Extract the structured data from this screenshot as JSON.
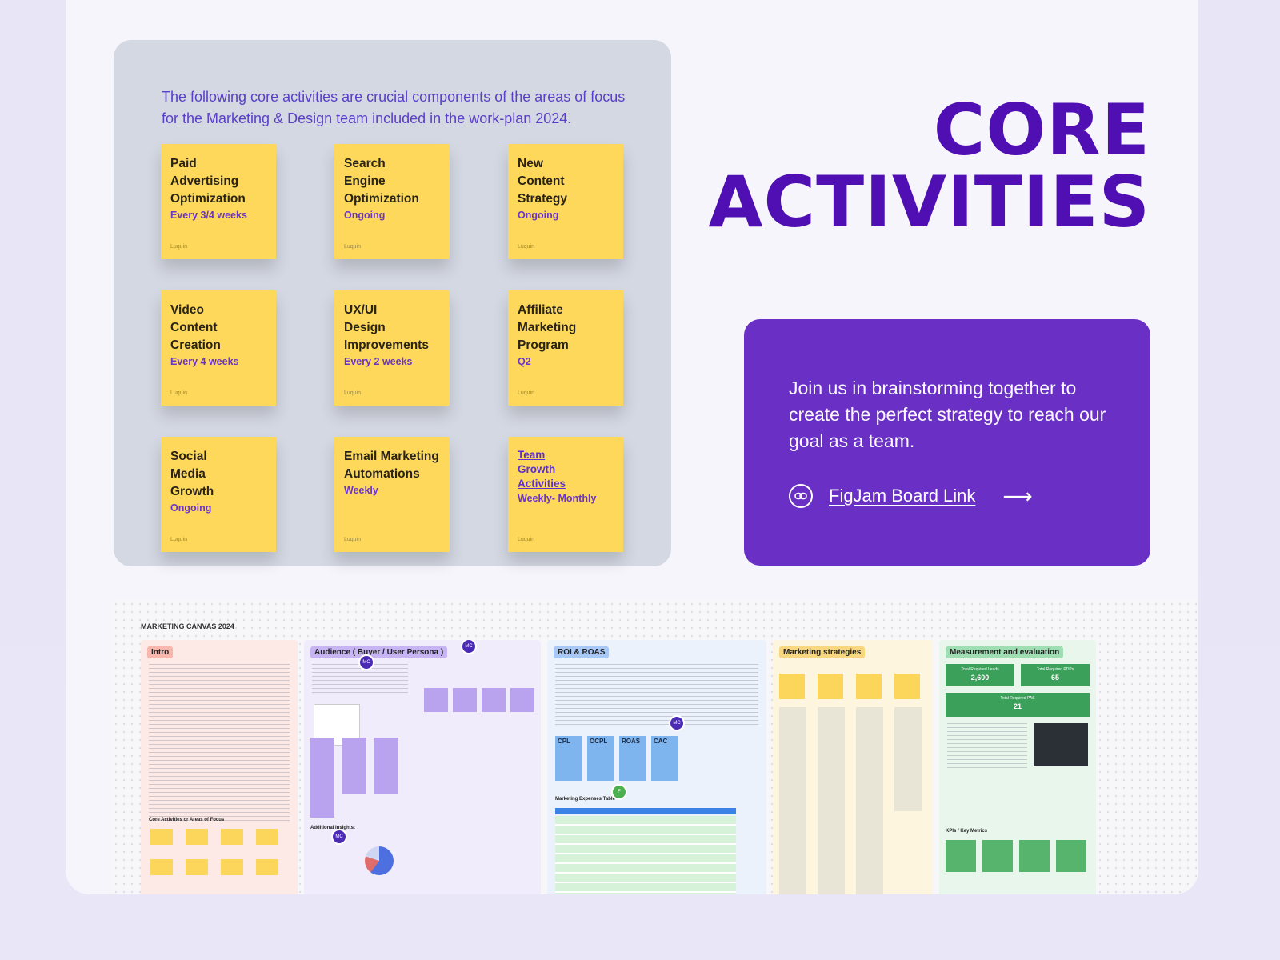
{
  "board": {
    "intro": "The following core activities are crucial components of the areas of focus for the Marketing & Design team included in the work-plan 2024.",
    "author": "Luquin",
    "notes": [
      {
        "title": "Paid\nAdvertising\nOptimization",
        "cadence": "Every 3/4 weeks"
      },
      {
        "title": "Search\nEngine\nOptimization",
        "cadence": "Ongoing"
      },
      {
        "title": "New\nContent\nStrategy",
        "cadence": "Ongoing"
      },
      {
        "title": "Video\nContent\nCreation",
        "cadence": "Every 4 weeks"
      },
      {
        "title": "UX/UI\nDesign\nImprovements",
        "cadence": "Every 2 weeks"
      },
      {
        "title": "Affiliate\nMarketing\nProgram",
        "cadence": "Q2"
      },
      {
        "title": "Social\nMedia\nGrowth",
        "cadence": "Ongoing"
      },
      {
        "title": "Email Marketing\nAutomations",
        "cadence": "Weekly"
      },
      {
        "title": "Team\nGrowth\nActivities",
        "cadence": "Weekly- Monthly"
      }
    ]
  },
  "hero": {
    "line1": "CORE",
    "line2": "ACTIVITIES"
  },
  "cta": {
    "text": "Join us in brainstorming together to create the perfect strategy to reach our goal as a team.",
    "link_label": "FigJam Board Link",
    "arrow": "⟶",
    "link_icon": "link-icon"
  },
  "canvas": {
    "title": "MARKETING CANVAS 2024",
    "sections": {
      "intro": "Intro",
      "audience": "Audience ( Buyer / User Persona )",
      "roi": "ROI & ROAS",
      "strategies": "Marketing strategies",
      "measurement": "Measurement and evaluation"
    },
    "intro_sub": "Core Activities or Areas of Focus",
    "aud_sub": "Additional Insights:",
    "roi_boxes": [
      "CPL",
      "OCPL",
      "ROAS",
      "CAC"
    ],
    "roi_table_title": "Marketing Expenses Table",
    "kpis": [
      {
        "label": "Total Required Leads",
        "value": "2,600"
      },
      {
        "label": "Total Required PDPs",
        "value": "65"
      },
      {
        "label": "Total Required PAS",
        "value": "21"
      }
    ],
    "kpi_sub": "KPIs / Key Metrics",
    "avatar_initials": "MC",
    "avatar_green_initial": "F"
  },
  "colors": {
    "accent": "#4f0fb2",
    "cta": "#6a2fc4",
    "sticky": "#fdd85a"
  }
}
